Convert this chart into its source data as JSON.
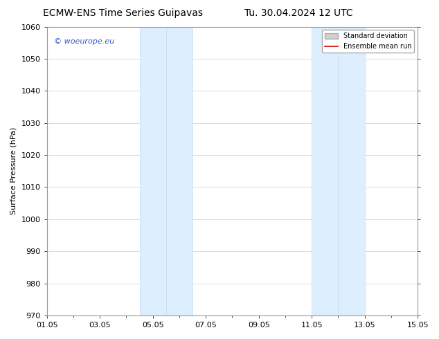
{
  "title": "ECMW-ENS Time Series Guipavas",
  "title2": "Tu. 30.04.2024 12 UTC",
  "ylabel": "Surface Pressure (hPa)",
  "ylim": [
    970,
    1060
  ],
  "yticks": [
    970,
    980,
    990,
    1000,
    1010,
    1020,
    1030,
    1040,
    1050,
    1060
  ],
  "xlim": [
    0,
    14
  ],
  "xtick_labels": [
    "01.05",
    "03.05",
    "05.05",
    "07.05",
    "09.05",
    "11.05",
    "13.05",
    "15.05"
  ],
  "xtick_positions": [
    0,
    2,
    4,
    6,
    8,
    10,
    12,
    14
  ],
  "shaded_regions": [
    {
      "xmin": 3.5,
      "xmax": 4.5
    },
    {
      "xmin": 4.5,
      "xmax": 5.5
    },
    {
      "xmin": 10.0,
      "xmax": 11.0
    },
    {
      "xmin": 11.0,
      "xmax": 12.0
    }
  ],
  "shaded_color": "#ddeeff",
  "shaded_edge_color": "#c5ddf0",
  "watermark_text": "© woeurope.eu",
  "watermark_color": "#3355cc",
  "legend_std_label": "Standard deviation",
  "legend_ens_label": "Ensemble mean run",
  "legend_std_color": "#d0d0d0",
  "legend_ens_color": "#cc0000",
  "background_color": "#ffffff",
  "grid_color": "#cccccc",
  "spine_color": "#999999",
  "title_fontsize": 10,
  "ylabel_fontsize": 8,
  "tick_fontsize": 8,
  "watermark_fontsize": 8,
  "legend_fontsize": 7
}
